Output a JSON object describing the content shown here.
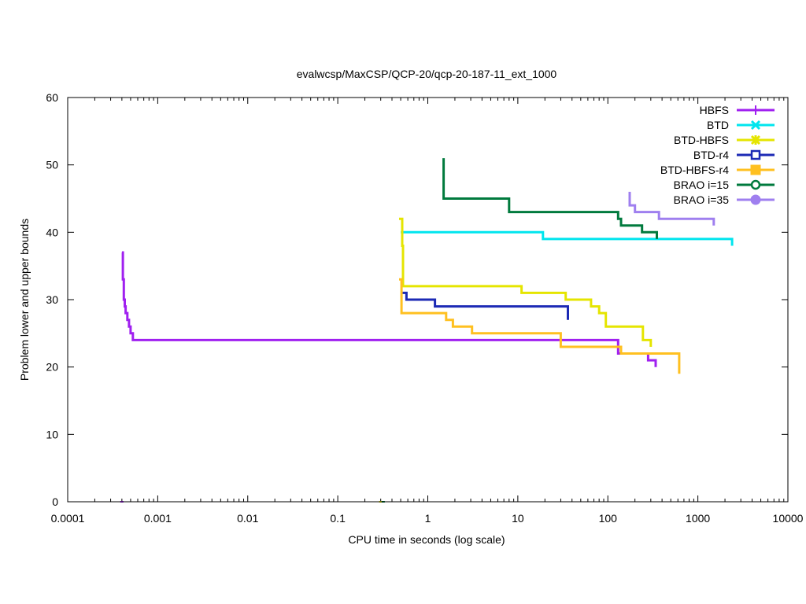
{
  "chart_data": {
    "type": "line",
    "title": "evalwcsp/MaxCSP/QCP-20/qcp-20-187-11_ext_1000",
    "xlabel": "CPU time in seconds (log scale)",
    "ylabel": "Problem lower and upper bounds",
    "x_scale": "log",
    "xlim": [
      0.0001,
      10000
    ],
    "ylim": [
      0,
      60
    ],
    "x_ticks": [
      "0.0001",
      "0.001",
      "0.01",
      "0.1",
      "1",
      "10",
      "100",
      "1000",
      "10000"
    ],
    "y_ticks": [
      "0",
      "10",
      "20",
      "30",
      "40",
      "50",
      "60"
    ],
    "legend_position": "top-right",
    "grid": false,
    "series": [
      {
        "name": "HBFS",
        "color": "#a020f0",
        "marker": "plus",
        "points": [
          [
            0.0004,
            37
          ],
          [
            0.00041,
            37
          ],
          [
            0.00041,
            33
          ],
          [
            0.00042,
            33
          ],
          [
            0.00042,
            30
          ],
          [
            0.00043,
            30
          ],
          [
            0.00043,
            29
          ],
          [
            0.00044,
            29
          ],
          [
            0.00044,
            28
          ],
          [
            0.00046,
            28
          ],
          [
            0.00046,
            27
          ],
          [
            0.00048,
            27
          ],
          [
            0.00048,
            26
          ],
          [
            0.0005,
            26
          ],
          [
            0.0005,
            25
          ],
          [
            0.00053,
            25
          ],
          [
            0.00053,
            24
          ],
          [
            130,
            24
          ],
          [
            130,
            22
          ],
          [
            280,
            22
          ],
          [
            280,
            21
          ],
          [
            340,
            21
          ],
          [
            340,
            20
          ]
        ]
      },
      {
        "name": "BTD",
        "color": "#00e5ee",
        "marker": "cross",
        "points": [
          [
            0.5,
            40
          ],
          [
            19,
            40
          ],
          [
            19,
            39
          ],
          [
            2400,
            39
          ],
          [
            2400,
            38
          ]
        ]
      },
      {
        "name": "BTD-HBFS",
        "color": "#e5e500",
        "marker": "star",
        "points": [
          [
            0.48,
            42
          ],
          [
            0.52,
            42
          ],
          [
            0.52,
            38
          ],
          [
            0.53,
            38
          ],
          [
            0.53,
            32
          ],
          [
            11,
            32
          ],
          [
            11,
            31
          ],
          [
            34,
            31
          ],
          [
            34,
            30
          ],
          [
            65,
            30
          ],
          [
            65,
            29
          ],
          [
            80,
            29
          ],
          [
            80,
            28
          ],
          [
            95,
            28
          ],
          [
            95,
            26
          ],
          [
            245,
            26
          ],
          [
            245,
            24
          ],
          [
            300,
            24
          ],
          [
            300,
            23
          ]
        ]
      },
      {
        "name": "BTD-r4",
        "color": "#1c2ab5",
        "marker": "box",
        "points": [
          [
            0.52,
            31
          ],
          [
            0.58,
            31
          ],
          [
            0.58,
            30
          ],
          [
            1.2,
            30
          ],
          [
            1.2,
            29
          ],
          [
            36,
            29
          ],
          [
            36,
            27
          ]
        ]
      },
      {
        "name": "BTD-HBFS-r4",
        "color": "#ffc020",
        "marker": "filled-box",
        "points": [
          [
            0.48,
            33
          ],
          [
            0.51,
            33
          ],
          [
            0.51,
            28
          ],
          [
            1.6,
            28
          ],
          [
            1.6,
            27
          ],
          [
            1.9,
            27
          ],
          [
            1.9,
            26
          ],
          [
            3.1,
            26
          ],
          [
            3.1,
            25
          ],
          [
            30,
            25
          ],
          [
            30,
            23
          ],
          [
            140,
            23
          ],
          [
            140,
            22
          ],
          [
            620,
            22
          ],
          [
            620,
            19
          ]
        ]
      },
      {
        "name": "BRAO i=15",
        "color": "#007a3d",
        "marker": "circle",
        "points": [
          [
            1.5,
            51
          ],
          [
            1.5,
            45
          ],
          [
            8,
            45
          ],
          [
            8,
            43
          ],
          [
            130,
            43
          ],
          [
            130,
            42
          ],
          [
            140,
            42
          ],
          [
            140,
            41
          ],
          [
            240,
            41
          ],
          [
            240,
            40
          ],
          [
            350,
            40
          ],
          [
            350,
            39
          ]
        ]
      },
      {
        "name": "BRAO i=35",
        "color": "#9f7fef",
        "marker": "filled-circle",
        "points": [
          [
            175,
            46
          ],
          [
            175,
            44
          ],
          [
            200,
            44
          ],
          [
            200,
            43
          ],
          [
            370,
            43
          ],
          [
            370,
            42
          ],
          [
            1500,
            42
          ],
          [
            1500,
            41
          ]
        ]
      }
    ],
    "baseline_marks": [
      {
        "x": 0.0004,
        "y": 0,
        "color": "#a020f0"
      },
      {
        "x": 0.3,
        "y": 0,
        "color": "#e5e500"
      },
      {
        "x": 0.32,
        "y": 0,
        "color": "#007a3d"
      }
    ]
  }
}
